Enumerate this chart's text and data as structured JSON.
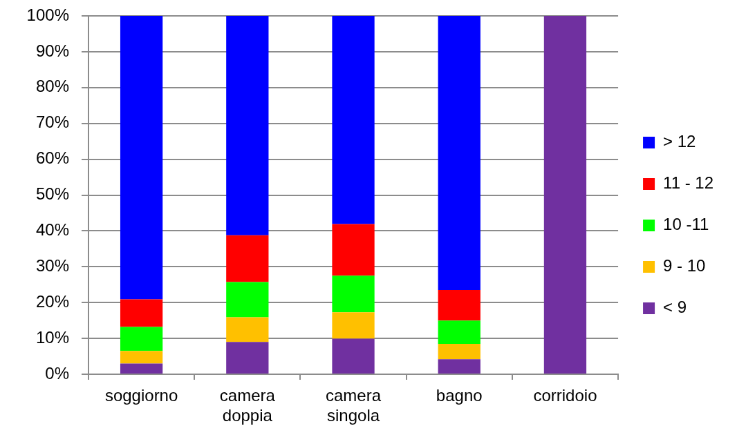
{
  "chart_data": {
    "type": "bar",
    "stacked": true,
    "categories": [
      "soggiorno",
      "camera doppia",
      "camera singola",
      "bagno",
      "corridoio"
    ],
    "series": [
      {
        "name": "< 9",
        "color": "#7030a0",
        "values": [
          3,
          9,
          9.9,
          4.2,
          100
        ]
      },
      {
        "name": "9 - 10",
        "color": "#ffc000",
        "values": [
          3.5,
          6.9,
          7.4,
          4.3,
          0
        ]
      },
      {
        "name": "10 -11",
        "color": "#00ff00",
        "values": [
          6.7,
          9.8,
          10.2,
          6.5,
          0
        ]
      },
      {
        "name": "11 - 12",
        "color": "#ff0000",
        "values": [
          7.7,
          13.1,
          14.4,
          8.5,
          0
        ]
      },
      {
        "name": "> 12",
        "color": "#0000ff",
        "values": [
          79.1,
          61.2,
          58.1,
          76.5,
          0
        ]
      }
    ],
    "ylim": [
      0,
      100
    ],
    "yticks": [
      {
        "value": 0,
        "label": "0%"
      },
      {
        "value": 10,
        "label": "10%"
      },
      {
        "value": 20,
        "label": "20%"
      },
      {
        "value": 30,
        "label": "30%"
      },
      {
        "value": 40,
        "label": "40%"
      },
      {
        "value": 50,
        "label": "50%"
      },
      {
        "value": 60,
        "label": "60%"
      },
      {
        "value": 70,
        "label": "70%"
      },
      {
        "value": 80,
        "label": "80%"
      },
      {
        "value": 90,
        "label": "90%"
      },
      {
        "value": 100,
        "label": "100%"
      }
    ],
    "grid": "y",
    "legend": "right"
  }
}
